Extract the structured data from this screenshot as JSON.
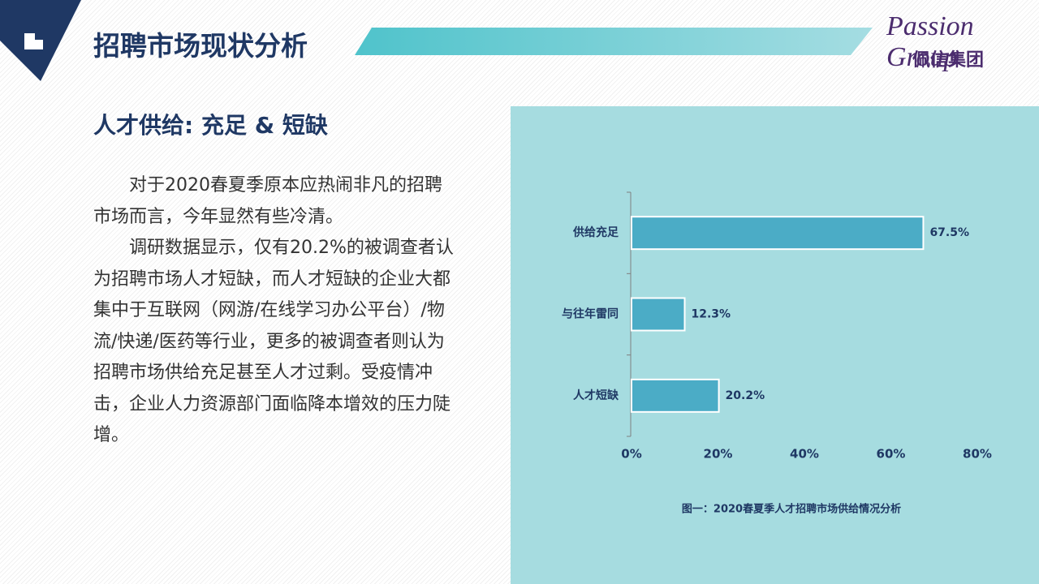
{
  "header": {
    "title": "招聘市场现状分析",
    "logo_en": "Passion Group",
    "logo_cn": "佩信集团"
  },
  "section": {
    "subtitle": "人才供给: 充足 & 短缺",
    "paragraphs": [
      "对于2020春夏季原本应热闹非凡的招聘市场而言，今年显然有些冷清。",
      "调研数据显示，仅有20.2%的被调查者认为招聘市场人才短缺，而人才短缺的企业大都集中于互联网（网游/在线学习办公平台）/物流/快递/医药等行业，更多的被调查者则认为招聘市场供给充足甚至人才过剩。受疫情冲击，企业人力资源部门面临降本增效的压力陡增。"
    ]
  },
  "chart_data": {
    "type": "bar",
    "orientation": "horizontal",
    "categories": [
      "供给充足",
      "与往年雷同",
      "人才短缺"
    ],
    "values": [
      67.5,
      12.3,
      20.2
    ],
    "value_labels": [
      "67.5%",
      "12.3%",
      "20.2%"
    ],
    "color": "#4bacc6",
    "xlim": [
      0,
      80
    ],
    "xticks": [
      {
        "value": 0,
        "label": "0%"
      },
      {
        "value": 20,
        "label": "20%"
      },
      {
        "value": 40,
        "label": "40%"
      },
      {
        "value": 60,
        "label": "60%"
      },
      {
        "value": 80,
        "label": "80%"
      }
    ],
    "caption": "图一：2020春夏季人才招聘市场供给情况分析"
  }
}
